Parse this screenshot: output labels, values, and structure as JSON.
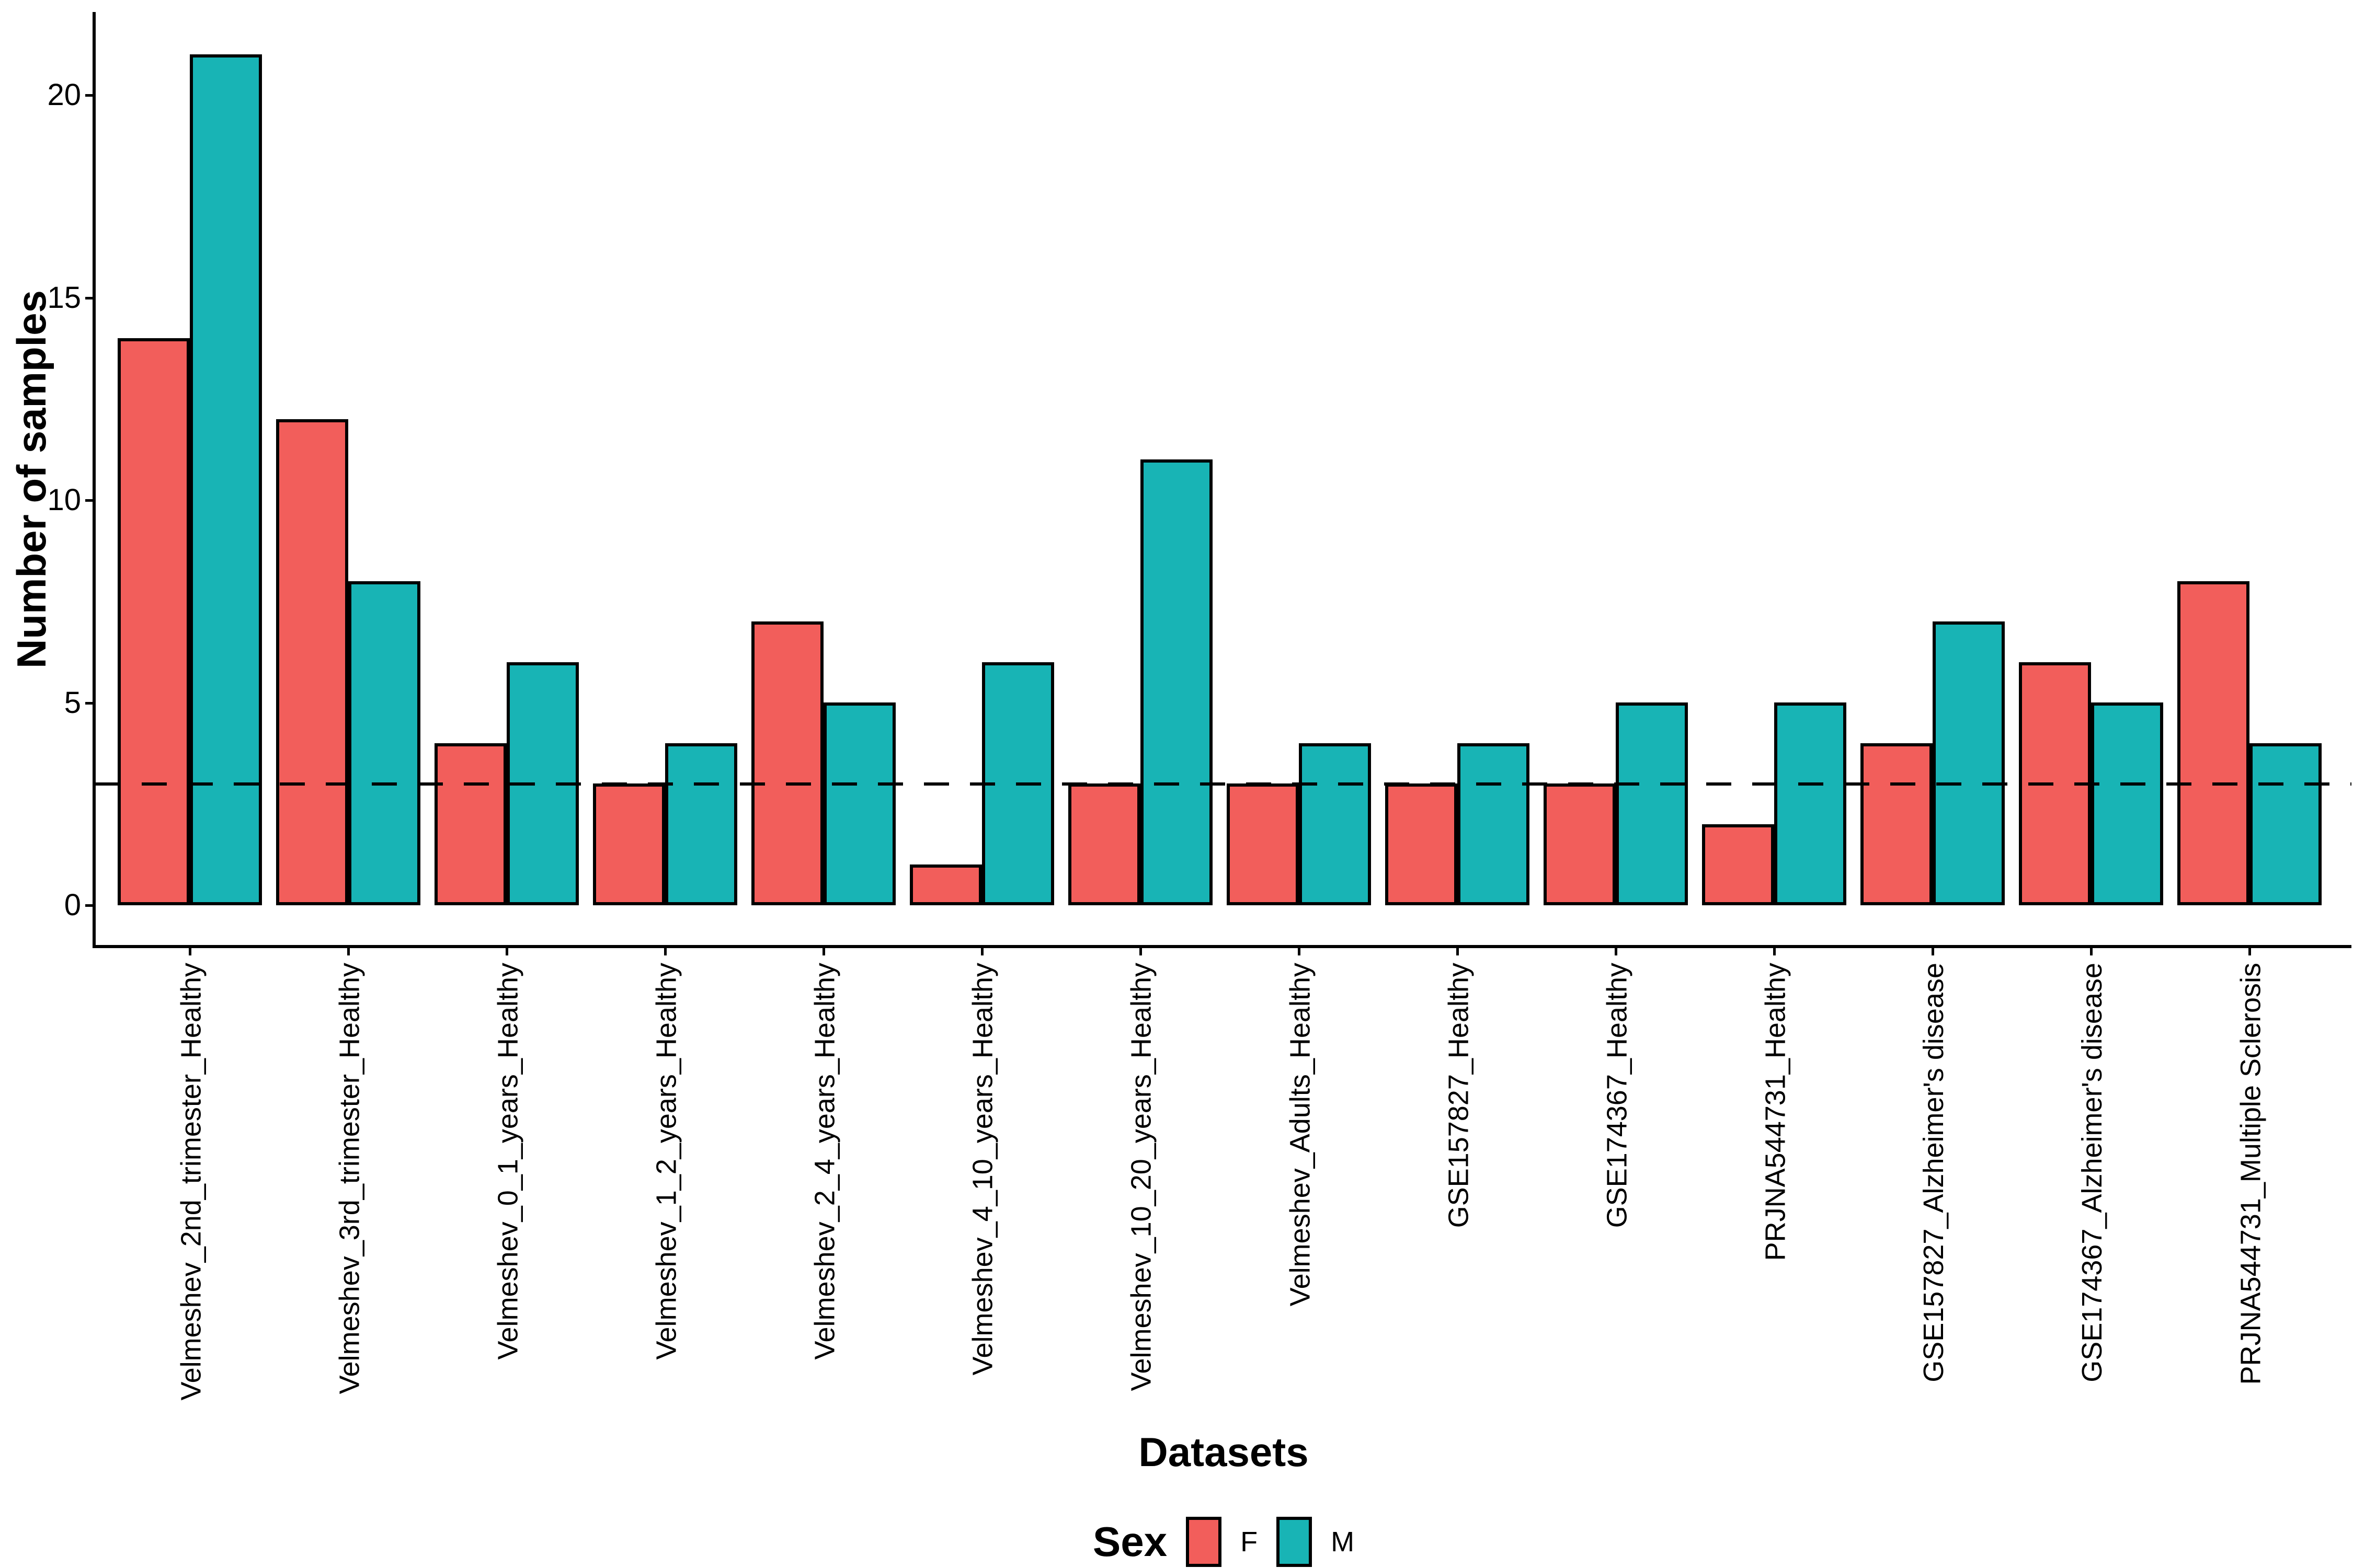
{
  "chart_data": {
    "type": "bar",
    "title": "",
    "xlabel": "Datasets",
    "ylabel": "Number of samples",
    "categories": [
      "Velmeshev_2nd_trimester_Healthy",
      "Velmeshev_3rd_trimester_Healthy",
      "Velmeshev_0_1_years_Healthy",
      "Velmeshev_1_2_years_Healthy",
      "Velmeshev_2_4_years_Healthy",
      "Velmeshev_4_10_years_Healthy",
      "Velmeshev_10_20_years_Healthy",
      "Velmeshev_Adults_Healthy",
      "GSE157827_Healthy",
      "GSE174367_Healthy",
      "PRJNA544731_Healthy",
      "GSE157827_Alzheimer's disease",
      "GSE174367_Alzheimer's disease",
      "PRJNA544731_Multiple Sclerosis"
    ],
    "series": [
      {
        "name": "F",
        "color": "#F25E5B",
        "values": [
          14,
          12,
          4,
          3,
          7,
          1,
          3,
          3,
          3,
          3,
          2,
          4,
          6,
          8
        ]
      },
      {
        "name": "M",
        "color": "#18B4B5",
        "values": [
          21,
          8,
          6,
          4,
          5,
          6,
          11,
          4,
          4,
          5,
          5,
          7,
          5,
          4
        ]
      }
    ],
    "ylim": [
      0,
      21
    ],
    "yticks": [
      0,
      5,
      10,
      15,
      20
    ],
    "reference_line": {
      "y": 3,
      "style": "dashed",
      "color": "#000000"
    },
    "legend_title": "Sex",
    "legend_position": "bottom",
    "grid": false,
    "bar_outline_color": "#000000",
    "background": "#FFFFFF"
  }
}
